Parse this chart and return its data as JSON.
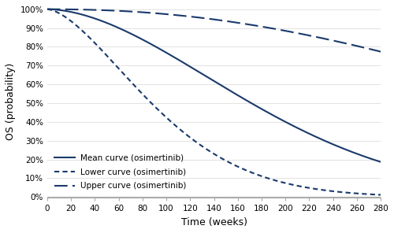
{
  "color": "#1a3a6b",
  "xlim": [
    0,
    280
  ],
  "ylim": [
    -0.005,
    1.02
  ],
  "xticks": [
    0,
    20,
    40,
    60,
    80,
    100,
    120,
    140,
    160,
    180,
    200,
    220,
    240,
    260,
    280
  ],
  "yticks": [
    0.0,
    0.1,
    0.2,
    0.3,
    0.4,
    0.5,
    0.6,
    0.7,
    0.8,
    0.9,
    1.0
  ],
  "xlabel": "Time (weeks)",
  "ylabel": "OS (probability)",
  "mean_weibull": {
    "scale": 210,
    "shape": 1.8
  },
  "lower_weibull": {
    "scale": 110,
    "shape": 1.6
  },
  "upper_weibull": {
    "scale": 520,
    "shape": 2.2
  },
  "legend": [
    {
      "label": "Mean curve (osimertinib)"
    },
    {
      "label": "Lower curve (osimertinib)"
    },
    {
      "label": "Upper curve (osimertinib)"
    }
  ],
  "fig_width": 5.0,
  "fig_height": 2.96,
  "dpi": 100,
  "background_color": "#ffffff",
  "grid_color": "#dddddd",
  "axis_color": "#aaaaaa",
  "tick_label_fontsize": 7.5,
  "axis_label_fontsize": 9
}
